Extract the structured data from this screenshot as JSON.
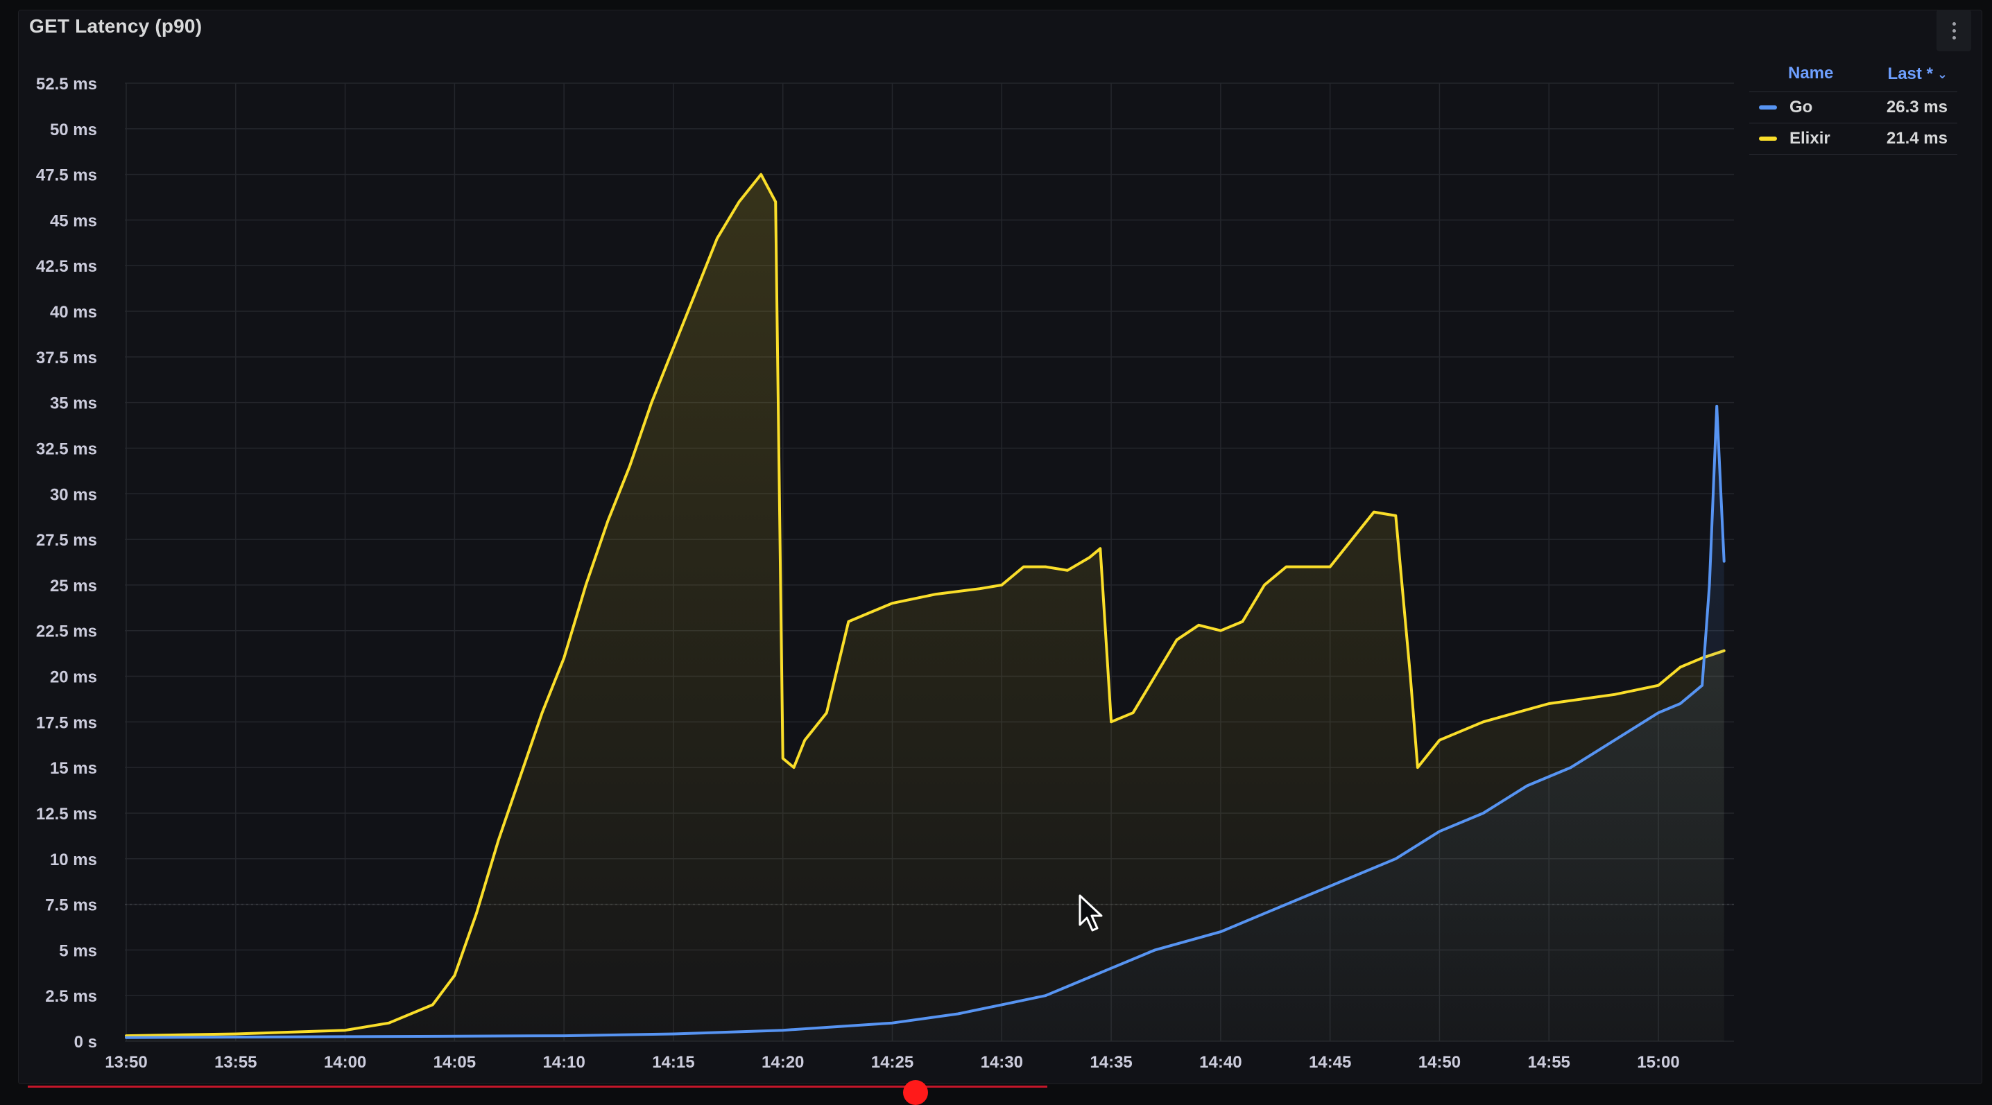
{
  "panel": {
    "title": "GET Latency (p90)"
  },
  "legend": {
    "name_header": "Name",
    "last_header": "Last *",
    "items": [
      {
        "name": "Go",
        "value": "26.3 ms",
        "color": "#5794f2"
      },
      {
        "name": "Elixir",
        "value": "21.4 ms",
        "color": "#fade2a"
      }
    ]
  },
  "chart_data": {
    "type": "line",
    "title": "GET Latency (p90)",
    "xlabel": "",
    "ylabel": "",
    "x_range_minutes": [
      "13:50",
      "15:03"
    ],
    "ylim": [
      0,
      52.5
    ],
    "y_ticks": [
      "0 s",
      "2.5 ms",
      "5 ms",
      "7.5 ms",
      "10 ms",
      "12.5 ms",
      "15 ms",
      "17.5 ms",
      "20 ms",
      "22.5 ms",
      "25 ms",
      "27.5 ms",
      "30 ms",
      "32.5 ms",
      "35 ms",
      "37.5 ms",
      "40 ms",
      "42.5 ms",
      "45 ms",
      "47.5 ms",
      "50 ms",
      "52.5 ms"
    ],
    "x_ticks": [
      "13:50",
      "13:55",
      "14:00",
      "14:05",
      "14:10",
      "14:15",
      "14:20",
      "14:25",
      "14:30",
      "14:35",
      "14:40",
      "14:45",
      "14:50",
      "14:55",
      "15:00"
    ],
    "grid": true,
    "legend_position": "right",
    "series": [
      {
        "name": "Elixir",
        "color": "#fade2a",
        "x": [
          "13:50",
          "13:55",
          "14:00",
          "14:02",
          "14:04",
          "14:05",
          "14:06",
          "14:07",
          "14:08",
          "14:09",
          "14:10",
          "14:11",
          "14:12",
          "14:13",
          "14:14",
          "14:15",
          "14:16",
          "14:17",
          "14:18",
          "14:19",
          "14:19:40",
          "14:20",
          "14:20:30",
          "14:21",
          "14:22",
          "14:23",
          "14:24",
          "14:25",
          "14:27",
          "14:29",
          "14:30",
          "14:31",
          "14:32",
          "14:33",
          "14:34",
          "14:34:30",
          "14:35",
          "14:36",
          "14:37",
          "14:38",
          "14:39",
          "14:40",
          "14:41",
          "14:42",
          "14:43",
          "14:44",
          "14:45",
          "14:46",
          "14:47",
          "14:48",
          "14:48:40",
          "14:49",
          "14:50",
          "14:52",
          "14:55",
          "14:58",
          "15:00",
          "15:01",
          "15:02",
          "15:03"
        ],
        "values": [
          0.3,
          0.4,
          0.6,
          1.0,
          2.0,
          3.6,
          7.0,
          11.0,
          14.5,
          18.0,
          21.0,
          25.0,
          28.5,
          31.5,
          35.0,
          38.0,
          41.0,
          44.0,
          46.0,
          47.5,
          46.0,
          15.5,
          15.0,
          16.5,
          18.0,
          23.0,
          23.5,
          24.0,
          24.5,
          24.8,
          25.0,
          26.0,
          26.0,
          25.8,
          26.5,
          27.0,
          17.5,
          18.0,
          20.0,
          22.0,
          22.8,
          22.5,
          23.0,
          25.0,
          26.0,
          26.0,
          26.0,
          27.5,
          29.0,
          28.8,
          20.0,
          15.0,
          16.5,
          17.5,
          18.5,
          19.0,
          19.5,
          20.5,
          21.0,
          21.4
        ]
      },
      {
        "name": "Go",
        "color": "#5794f2",
        "x": [
          "13:50",
          "14:00",
          "14:10",
          "14:15",
          "14:20",
          "14:25",
          "14:28",
          "14:30",
          "14:32",
          "14:34",
          "14:35",
          "14:37",
          "14:40",
          "14:42",
          "14:44",
          "14:46",
          "14:48",
          "14:50",
          "14:52",
          "14:54",
          "14:56",
          "14:58",
          "15:00",
          "15:01",
          "15:02",
          "15:02:20",
          "15:02:40",
          "15:03"
        ],
        "values": [
          0.2,
          0.25,
          0.3,
          0.4,
          0.6,
          1.0,
          1.5,
          2.0,
          2.5,
          3.5,
          4.0,
          5.0,
          6.0,
          7.0,
          8.0,
          9.0,
          10.0,
          11.5,
          12.5,
          14.0,
          15.0,
          16.5,
          18.0,
          18.5,
          19.5,
          25.0,
          34.8,
          26.3
        ]
      }
    ]
  }
}
